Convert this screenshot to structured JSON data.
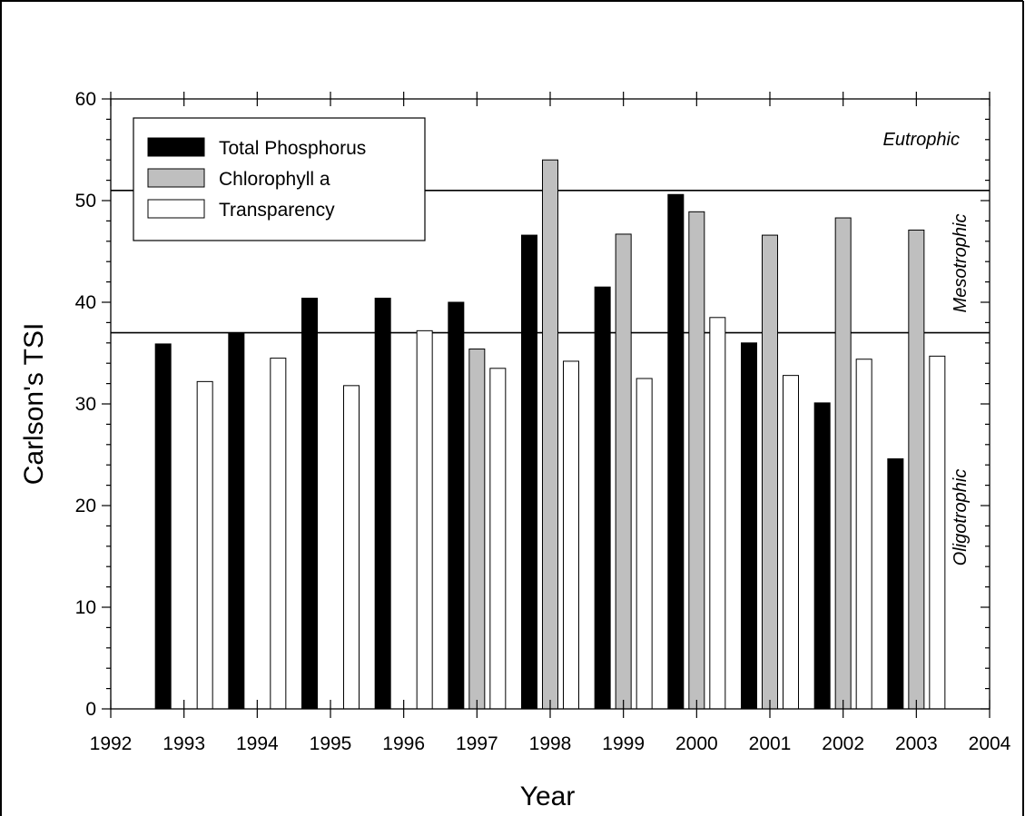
{
  "chart_data": {
    "type": "bar",
    "title": "",
    "xlabel": "Year",
    "ylabel": "Carlson's TSI",
    "categories": [
      "1993",
      "1994",
      "1995",
      "1996",
      "1997",
      "1998",
      "1999",
      "2000",
      "2001",
      "2002",
      "2003"
    ],
    "x": [
      1993,
      1994,
      1995,
      1996,
      1997,
      1998,
      1999,
      2000,
      2001,
      2002,
      2003
    ],
    "xlim": [
      1992,
      2004
    ],
    "ylim": [
      0,
      60
    ],
    "xticks": [
      1992,
      1993,
      1994,
      1995,
      1996,
      1997,
      1998,
      1999,
      2000,
      2001,
      2002,
      2003,
      2004
    ],
    "yticks": [
      0,
      10,
      20,
      30,
      40,
      50,
      60
    ],
    "grid": false,
    "legend_position": "top-left",
    "series": [
      {
        "name": "Total Phosphorus",
        "color": "#000000",
        "values": [
          35.9,
          37.0,
          40.4,
          40.4,
          40.0,
          46.6,
          41.5,
          50.6,
          36.0,
          30.1,
          24.6
        ]
      },
      {
        "name": "Chlorophyll a",
        "color": "#bfbfbf",
        "values": [
          null,
          null,
          null,
          null,
          35.4,
          54.0,
          46.7,
          48.9,
          46.6,
          48.3,
          47.1
        ]
      },
      {
        "name": "Transparency",
        "color": "#ffffff",
        "values": [
          32.2,
          34.5,
          31.8,
          37.2,
          33.5,
          34.2,
          32.5,
          38.5,
          32.8,
          34.4,
          34.7
        ]
      }
    ],
    "reference_lines": [
      {
        "y": 51,
        "color": "#000000"
      },
      {
        "y": 37,
        "color": "#000000"
      }
    ],
    "annotations": [
      {
        "text": "Eutrophic",
        "zone": "above-51"
      },
      {
        "text": "Mesotrophic",
        "zone": "37-51"
      },
      {
        "text": "Oligotrophic",
        "zone": "below-37"
      }
    ]
  }
}
